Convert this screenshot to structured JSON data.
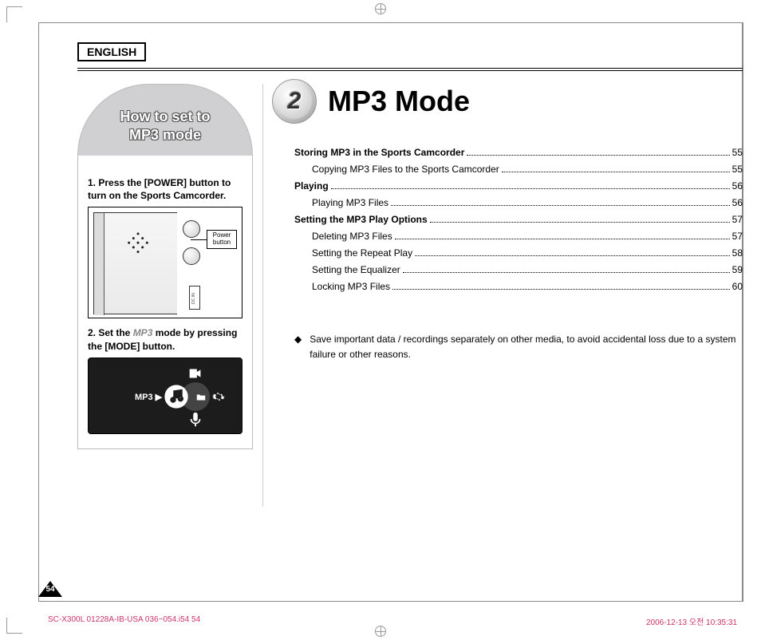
{
  "language_badge": "ENGLISH",
  "sidebar": {
    "title_line1": "How to set to",
    "title_line2": "MP3 mode",
    "step1": "1.  Press the [POWER] button to turn on the Sports Camcorder.",
    "step2_prefix": "2.  Set the ",
    "step2_mode": "MP3",
    "step2_suffix": " mode by pressing the [MODE] button.",
    "power_label_l1": "Power",
    "power_label_l2": "button",
    "mode_indicator": "MP3 ▶"
  },
  "chapter": {
    "number": "2",
    "title": "MP3 Mode"
  },
  "toc": [
    {
      "label": "Storing MP3 in the Sports Camcorder",
      "page": "55",
      "bold": true,
      "indent": 0
    },
    {
      "label": "Copying MP3 Files to the Sports Camcorder",
      "page": "55",
      "bold": false,
      "indent": 1
    },
    {
      "label": "Playing",
      "page": "56",
      "bold": true,
      "indent": 0
    },
    {
      "label": "Playing MP3 Files",
      "page": "56",
      "bold": false,
      "indent": 1
    },
    {
      "label": "Setting the MP3 Play Options",
      "page": "57",
      "bold": true,
      "indent": 0
    },
    {
      "label": "Deleting MP3 Files",
      "page": "57",
      "bold": false,
      "indent": 1
    },
    {
      "label": "Setting the Repeat Play",
      "page": "58",
      "bold": false,
      "indent": 1
    },
    {
      "label": "Setting the Equalizer",
      "page": "59",
      "bold": false,
      "indent": 1
    },
    {
      "label": "Locking MP3 Files",
      "page": "60",
      "bold": false,
      "indent": 1
    }
  ],
  "note": "Save important data / recordings separately on other media, to avoid accidental loss due to a system failure or other reasons.",
  "page_number": "54",
  "footer": {
    "file": "SC-X300L 01228A-IB-USA 036~054.i54   54",
    "timestamp": "2006-12-13   오전 10:35:31"
  },
  "colors": {
    "arch_fill": "#d0cfd1",
    "footer_text": "#c36",
    "mode_screen": "#1c1c1c"
  }
}
